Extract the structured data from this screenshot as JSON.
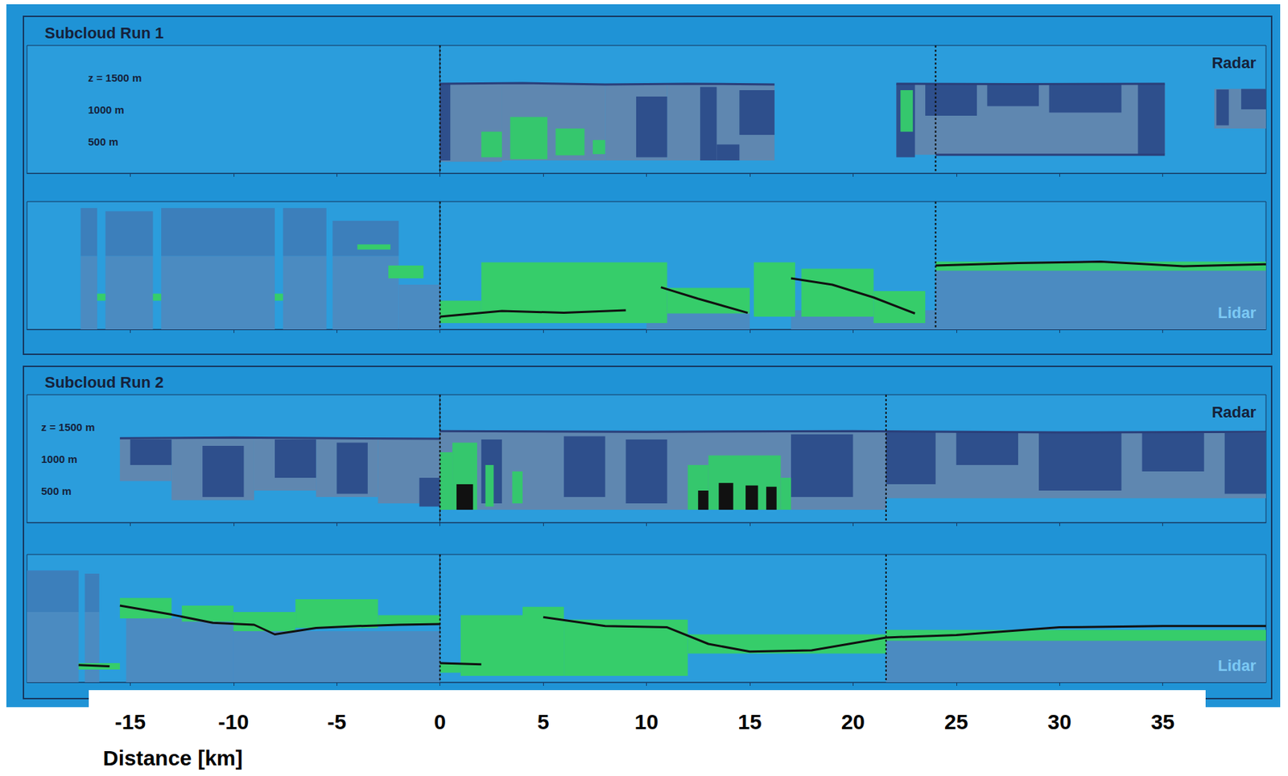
{
  "chart_data": [
    {
      "type": "curtain",
      "title": "Subcloud Run 1",
      "annotations": [
        "Radar"
      ],
      "xlim": [
        -20,
        40
      ],
      "xticks": [
        -15,
        -10,
        -5,
        0,
        5,
        10,
        15,
        20,
        25,
        30,
        35
      ],
      "ylim": [
        0,
        2000
      ],
      "yticks": [
        {
          "value": 500,
          "label": "500 m"
        },
        {
          "value": 1000,
          "label": "1000 m"
        },
        {
          "value": 1500,
          "label": "z = 1500 m"
        }
      ],
      "tick_labels": "y",
      "vlines": [
        0,
        24
      ],
      "series": [
        {
          "type": "band",
          "color": "#5f87b0",
          "values": [
            [
              0,
              3,
              180,
              1400
            ],
            [
              3,
              8,
              200,
              1400
            ],
            [
              8,
              11,
              200,
              1390
            ],
            [
              11,
              16.2,
              200,
              1390
            ],
            [
              22.1,
              35.1,
              290,
              1400
            ],
            [
              37.5,
              40,
              700,
              1320
            ]
          ]
        },
        {
          "type": "band",
          "color": "#2e4f8c",
          "values": [
            [
              0,
              0.5,
              200,
              1400
            ],
            [
              9.5,
              11,
              250,
              1200
            ],
            [
              12.6,
              13.4,
              200,
              1350
            ],
            [
              13.4,
              14.5,
              200,
              450
            ],
            [
              14.5,
              16.2,
              600,
              1300
            ],
            [
              22.1,
              23,
              250,
              1400
            ],
            [
              23.5,
              26,
              900,
              1390
            ],
            [
              26.5,
              29,
              1050,
              1390
            ],
            [
              29.5,
              33,
              950,
              1390
            ],
            [
              33.8,
              35.1,
              300,
              1400
            ],
            [
              37.6,
              38.2,
              750,
              1310
            ],
            [
              38.8,
              40,
              1000,
              1320
            ]
          ]
        },
        {
          "type": "band",
          "color": "#35c76d",
          "values": [
            [
              2,
              3,
              250,
              650
            ],
            [
              3.4,
              5.2,
              220,
              880
            ],
            [
              5.6,
              7,
              280,
              700
            ],
            [
              7.4,
              8,
              300,
              520
            ],
            [
              22.3,
              22.9,
              650,
              1300
            ]
          ]
        },
        {
          "type": "line",
          "color": "#2a3f7a",
          "values": [
            [
              0,
              1400
            ],
            [
              4,
              1410
            ],
            [
              8,
              1390
            ],
            [
              12,
              1400
            ],
            [
              16.2,
              1390
            ],
            null,
            [
              22.1,
              1400
            ],
            [
              28,
              1395
            ],
            [
              35.1,
              1400
            ],
            null,
            [
              24,
              290
            ],
            [
              35.1,
              290
            ]
          ]
        }
      ]
    },
    {
      "type": "curtain",
      "annotations": [
        "Lidar"
      ],
      "xlim": [
        -20,
        40
      ],
      "xticks": [
        -15,
        -10,
        -5,
        0,
        5,
        10,
        15,
        20,
        25,
        30,
        35
      ],
      "ylim": [
        0,
        2000
      ],
      "tick_labels": false,
      "vlines": [
        0,
        24
      ],
      "series": [
        {
          "type": "band",
          "color": "#4b8bc1",
          "values": [
            [
              -17.4,
              -16.6,
              0,
              1150
            ],
            [
              -16.2,
              -13.9,
              0,
              1150
            ],
            [
              -13.5,
              -8,
              0,
              1150
            ],
            [
              -7.6,
              -5.5,
              0,
              1150
            ],
            [
              -5.2,
              -2,
              0,
              1150
            ],
            [
              -2,
              0,
              0,
              700
            ],
            [
              10,
              15,
              0,
              600
            ],
            [
              17,
              24,
              0,
              300
            ],
            [
              24,
              40,
              0,
              1020
            ]
          ]
        },
        {
          "type": "band",
          "color": "#3c7fbb",
          "values": [
            [
              -17.4,
              -16.6,
              1150,
              1900
            ],
            [
              -16.2,
              -13.9,
              1150,
              1850
            ],
            [
              -13.5,
              -8,
              1150,
              1900
            ],
            [
              -7.6,
              -5.5,
              1150,
              1900
            ],
            [
              -5.2,
              -2,
              1150,
              1700
            ]
          ]
        },
        {
          "type": "band",
          "color": "#36cd6a",
          "values": [
            [
              -16.6,
              -16.2,
              450,
              560
            ],
            [
              -13.9,
              -13.5,
              450,
              560
            ],
            [
              -8,
              -7.6,
              450,
              560
            ],
            [
              -4,
              -2.4,
              1250,
              1330
            ],
            [
              -2.5,
              -0.8,
              800,
              1000
            ],
            [
              0,
              2,
              100,
              450
            ],
            [
              2,
              11,
              100,
              1050
            ],
            [
              11,
              15,
              250,
              650
            ],
            [
              15.2,
              17.2,
              200,
              1050
            ],
            [
              17.5,
              21,
              200,
              950
            ],
            [
              21,
              23.5,
              100,
              600
            ],
            [
              24,
              40,
              920,
              1060
            ]
          ]
        },
        {
          "type": "line",
          "color": "#111111",
          "values": [
            [
              0,
              200
            ],
            [
              3,
              290
            ],
            [
              6,
              260
            ],
            [
              9,
              300
            ],
            null,
            [
              10.7,
              660
            ],
            [
              12.5,
              480
            ],
            [
              14.9,
              260
            ],
            null,
            [
              17,
              800
            ],
            [
              19,
              700
            ],
            [
              21,
              500
            ],
            [
              23,
              250
            ],
            null,
            [
              24,
              1000
            ],
            [
              28,
              1040
            ],
            [
              32,
              1060
            ],
            [
              36,
              990
            ],
            [
              40,
              1020
            ]
          ]
        }
      ]
    },
    {
      "type": "curtain",
      "title": "Subcloud Run 2",
      "annotations": [
        "Radar"
      ],
      "xlim": [
        -20,
        40
      ],
      "xticks": [
        -15,
        -10,
        -5,
        0,
        5,
        10,
        15,
        20,
        25,
        30,
        35
      ],
      "ylim": [
        0,
        2000
      ],
      "yticks": [
        {
          "value": 500,
          "label": "500 m"
        },
        {
          "value": 1000,
          "label": "1000 m"
        },
        {
          "value": 1500,
          "label": "z = 1500 m"
        }
      ],
      "tick_labels": "y",
      "vlines": [
        0,
        21.6
      ],
      "series": [
        {
          "type": "band",
          "color": "#5f87b0",
          "values": [
            [
              -15.5,
              -13,
              650,
              1330
            ],
            [
              -13,
              -9,
              350,
              1330
            ],
            [
              -9,
              -6,
              500,
              1330
            ],
            [
              -6,
              -3,
              400,
              1330
            ],
            [
              -3,
              0,
              300,
              1320
            ],
            [
              0,
              21.6,
              200,
              1430
            ],
            [
              21.6,
              40,
              380,
              1420
            ]
          ]
        },
        {
          "type": "band",
          "color": "#2e4f8c",
          "values": [
            [
              -15,
              -13,
              900,
              1300
            ],
            [
              -11.5,
              -9.5,
              400,
              1200
            ],
            [
              -8,
              -6,
              700,
              1300
            ],
            [
              -5,
              -3.5,
              450,
              1250
            ],
            [
              -1,
              0,
              250,
              700
            ],
            [
              2,
              3,
              300,
              1300
            ],
            [
              6,
              8,
              400,
              1350
            ],
            [
              9,
              11,
              300,
              1300
            ],
            [
              17,
              20,
              400,
              1380
            ],
            [
              21.6,
              24,
              600,
              1420
            ],
            [
              25,
              28,
              900,
              1410
            ],
            [
              29,
              33,
              500,
              1400
            ],
            [
              34,
              37,
              800,
              1410
            ],
            [
              38,
              40,
              450,
              1400
            ]
          ]
        },
        {
          "type": "band",
          "color": "#35c76d",
          "values": [
            [
              0,
              0.6,
              200,
              1100
            ],
            [
              0.6,
              1.8,
              200,
              1250
            ],
            [
              2.2,
              2.6,
              250,
              900
            ],
            [
              3.5,
              4,
              300,
              800
            ],
            [
              12,
              13,
              200,
              900
            ],
            [
              13,
              16.5,
              200,
              1050
            ],
            [
              16.5,
              17,
              200,
              700
            ]
          ]
        },
        {
          "type": "band",
          "color": "#111111",
          "values": [
            [
              0.8,
              1.6,
              200,
              600
            ],
            [
              12.5,
              13,
              200,
              500
            ],
            [
              13.5,
              14.2,
              200,
              620
            ],
            [
              14.8,
              15.4,
              200,
              580
            ],
            [
              15.8,
              16.3,
              200,
              560
            ]
          ]
        },
        {
          "type": "line",
          "color": "#2a3f7a",
          "values": [
            [
              -15.5,
              1320
            ],
            [
              -10,
              1330
            ],
            [
              -5,
              1320
            ],
            [
              0,
              1310
            ],
            null,
            [
              0,
              1430
            ],
            [
              10,
              1420
            ],
            [
              20,
              1430
            ],
            [
              30,
              1410
            ],
            [
              40,
              1420
            ]
          ]
        }
      ]
    },
    {
      "type": "curtain",
      "annotations": [
        "Lidar"
      ],
      "xlabel": "Distance [km]",
      "xlim": [
        -20,
        40
      ],
      "xticks": [
        -15,
        -10,
        -5,
        0,
        5,
        10,
        15,
        20,
        25,
        30,
        35
      ],
      "ylim": [
        0,
        2000
      ],
      "tick_labels": "x",
      "vlines": [
        0,
        21.6
      ],
      "series": [
        {
          "type": "band",
          "color": "#4b8bc1",
          "values": [
            [
              -20,
              -17.5,
              0,
              1100
            ],
            [
              -17.2,
              -16.5,
              0,
              1100
            ],
            [
              -15.2,
              -10,
              0,
              1000
            ],
            [
              -10,
              0,
              0,
              800
            ],
            [
              21.6,
              40,
              0,
              800
            ]
          ]
        },
        {
          "type": "band",
          "color": "#3c7fbb",
          "values": [
            [
              -20,
              -17.5,
              1100,
              1750
            ],
            [
              -17.2,
              -16.5,
              1100,
              1700
            ]
          ]
        },
        {
          "type": "band",
          "color": "#36cd6a",
          "values": [
            [
              -17.5,
              -15.5,
              200,
              300
            ],
            [
              -15.5,
              -13,
              1000,
              1320
            ],
            [
              -12.5,
              -10,
              950,
              1200
            ],
            [
              -10,
              -7,
              800,
              1100
            ],
            [
              -7,
              -3,
              850,
              1300
            ],
            [
              -3,
              0,
              900,
              1050
            ],
            [
              0,
              1,
              150,
              300
            ],
            [
              1,
              4,
              100,
              1050
            ],
            [
              4,
              6,
              100,
              1180
            ],
            [
              6,
              12,
              100,
              980
            ],
            [
              12,
              21.6,
              450,
              750
            ],
            [
              21.6,
              40,
              650,
              820
            ]
          ]
        },
        {
          "type": "line",
          "color": "#111111",
          "values": [
            [
              -17.5,
              270
            ],
            [
              -16,
              250
            ],
            null,
            [
              -15.5,
              1200
            ],
            [
              -13,
              1060
            ],
            [
              -11,
              930
            ],
            [
              -9,
              900
            ],
            [
              -8,
              750
            ],
            [
              -6,
              850
            ],
            [
              -4,
              880
            ],
            [
              -2,
              900
            ],
            [
              0,
              910
            ],
            null,
            [
              0,
              300
            ],
            [
              2,
              280
            ],
            null,
            [
              5,
              1020
            ],
            [
              8,
              880
            ],
            [
              11,
              860
            ],
            [
              13,
              600
            ],
            [
              15,
              480
            ],
            [
              18,
              500
            ],
            [
              21.6,
              700
            ],
            [
              25,
              740
            ],
            [
              30,
              860
            ],
            [
              35,
              880
            ],
            [
              40,
              880
            ]
          ]
        }
      ]
    }
  ]
}
